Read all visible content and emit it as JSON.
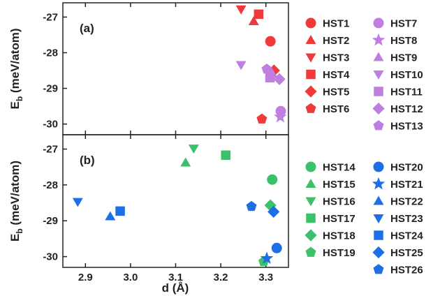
{
  "chart_data": {
    "type": "scatter",
    "xlabel": "d (Å)",
    "ylabel_main": "E",
    "ylabel_sub": "b",
    "ylabel_rest": " (meV/atom)",
    "xlim": [
      2.85,
      3.35
    ],
    "x_ticks": [
      "2.9",
      "3.0",
      "3.1",
      "3.2",
      "3.3"
    ],
    "x_tick_values": [
      2.9,
      3.0,
      3.1,
      3.2,
      3.3
    ],
    "y_ticks": [
      "-27",
      "-28",
      "-29",
      "-30"
    ],
    "y_tick_values": [
      -27,
      -28,
      -29,
      -30
    ],
    "grid": false,
    "legend_placement": "right",
    "panels": [
      {
        "label": "(a)",
        "ylim": [
          -30.3,
          -26.6
        ],
        "series": [
          {
            "name": "HST1",
            "marker": "circle",
            "color": "#ee3a3a",
            "x": 3.31,
            "y": -27.68
          },
          {
            "name": "HST2",
            "marker": "triangle-up",
            "color": "#ee3a3a",
            "x": 3.273,
            "y": -27.12
          },
          {
            "name": "HST3",
            "marker": "triangle-down",
            "color": "#ee3a3a",
            "x": 3.245,
            "y": -26.78
          },
          {
            "name": "HST4",
            "marker": "square",
            "color": "#ee3a3a",
            "x": 3.284,
            "y": -26.92
          },
          {
            "name": "HST5",
            "marker": "diamond",
            "color": "#ee3a3a",
            "x": 3.318,
            "y": -28.5
          },
          {
            "name": "HST6",
            "marker": "pentagon",
            "color": "#ee3a3a",
            "x": 3.291,
            "y": -29.86
          },
          {
            "name": "HST7",
            "marker": "circle",
            "color": "#bf7fe0",
            "x": 3.333,
            "y": -29.64
          },
          {
            "name": "HST8",
            "marker": "star",
            "color": "#bf7fe0",
            "x": 3.332,
            "y": -29.8
          },
          {
            "name": "HST9",
            "marker": "triangle-up",
            "color": "#bf7fe0",
            "x": 3.314,
            "y": -28.58
          },
          {
            "name": "HST10",
            "marker": "triangle-down",
            "color": "#bf7fe0",
            "x": 3.245,
            "y": -28.34
          },
          {
            "name": "HST11",
            "marker": "square",
            "color": "#bf7fe0",
            "x": 3.309,
            "y": -28.7
          },
          {
            "name": "HST12",
            "marker": "diamond",
            "color": "#bf7fe0",
            "x": 3.33,
            "y": -28.74
          },
          {
            "name": "HST13",
            "marker": "pentagon",
            "color": "#bf7fe0",
            "x": 3.302,
            "y": -28.46
          }
        ]
      },
      {
        "label": "(b)",
        "ylim": [
          -30.3,
          -26.6
        ],
        "series": [
          {
            "name": "HST14",
            "marker": "circle",
            "color": "#3cc06a",
            "x": 3.314,
            "y": -27.85
          },
          {
            "name": "HST15",
            "marker": "triangle-up",
            "color": "#3cc06a",
            "x": 3.122,
            "y": -27.38
          },
          {
            "name": "HST16",
            "marker": "triangle-down",
            "color": "#3cc06a",
            "x": 3.14,
            "y": -26.98
          },
          {
            "name": "HST17",
            "marker": "square",
            "color": "#3cc06a",
            "x": 3.211,
            "y": -27.17
          },
          {
            "name": "HST18",
            "marker": "diamond",
            "color": "#3cc06a",
            "x": 3.31,
            "y": -28.57
          },
          {
            "name": "HST19",
            "marker": "pentagon",
            "color": "#3cc06a",
            "x": 3.295,
            "y": -30.14
          },
          {
            "name": "HST20",
            "marker": "circle",
            "color": "#1e6fe6",
            "x": 3.324,
            "y": -29.76
          },
          {
            "name": "HST21",
            "marker": "star",
            "color": "#1e6fe6",
            "x": 3.302,
            "y": -30.05
          },
          {
            "name": "HST22",
            "marker": "triangle-up",
            "color": "#1e6fe6",
            "x": 2.955,
            "y": -28.88
          },
          {
            "name": "HST23",
            "marker": "triangle-down",
            "color": "#1e6fe6",
            "x": 2.883,
            "y": -28.47
          },
          {
            "name": "HST24",
            "marker": "square",
            "color": "#1e6fe6",
            "x": 2.977,
            "y": -28.73
          },
          {
            "name": "HST25",
            "marker": "diamond",
            "color": "#1e6fe6",
            "x": 3.317,
            "y": -28.75
          },
          {
            "name": "HST26",
            "marker": "pentagon",
            "color": "#1e6fe6",
            "x": 3.268,
            "y": -28.6
          }
        ]
      }
    ]
  }
}
